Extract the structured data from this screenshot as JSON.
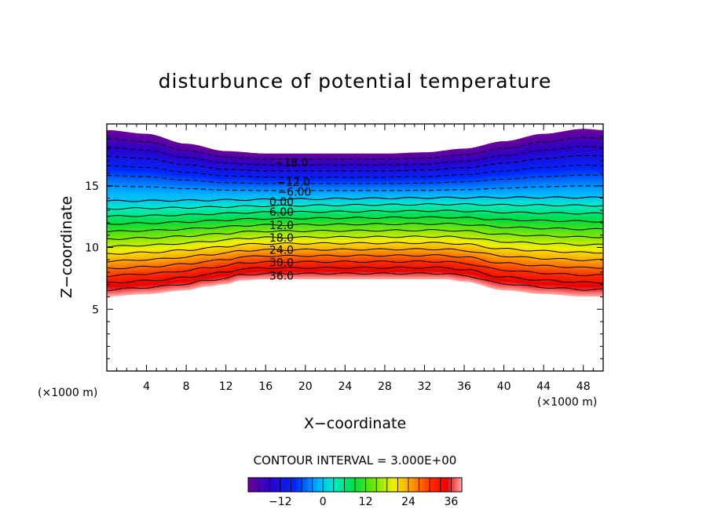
{
  "chart_data": {
    "type": "contour",
    "title": "disturbunce of potential temperature",
    "xlabel": "X−coordinate",
    "ylabel": "Z−coordinate",
    "x_unit": "(×1000 m)",
    "y_unit": "(×1000 m)",
    "xlim": [
      0,
      50
    ],
    "ylim": [
      0,
      20
    ],
    "x_ticks": [
      4,
      8,
      12,
      16,
      20,
      24,
      28,
      32,
      36,
      40,
      44,
      48
    ],
    "y_ticks": [
      5,
      10,
      15
    ],
    "contour_interval_text": "CONTOUR INTERVAL = 3.000E+00",
    "contour_interval": 3,
    "level_range": [
      -21,
      39
    ],
    "surface": {
      "x": [
        0,
        4,
        8,
        10,
        12,
        13.5,
        16,
        20,
        24,
        28,
        32,
        34,
        36,
        40,
        44,
        48,
        50
      ],
      "z": [
        6.0,
        6.2,
        6.5,
        6.8,
        7.0,
        7.3,
        7.4,
        7.4,
        7.4,
        7.4,
        7.4,
        7.4,
        7.2,
        6.5,
        6.2,
        6.0,
        6.0
      ]
    },
    "top": {
      "x": [
        0,
        4,
        8,
        12,
        16,
        20,
        24,
        28,
        32,
        36,
        40,
        44,
        48,
        50
      ],
      "z": [
        19.5,
        19.2,
        18.4,
        17.8,
        17.6,
        17.6,
        17.6,
        17.6,
        17.7,
        18.0,
        18.6,
        19.2,
        19.6,
        19.5
      ]
    },
    "contour_labels": [
      {
        "text": "−18.0",
        "x": 18.6,
        "z": 16.9
      },
      {
        "text": "−12.0",
        "x": 18.8,
        "z": 15.3
      },
      {
        "text": "−6.00",
        "x": 18.9,
        "z": 14.5
      },
      {
        "text": "0.00",
        "x": 17.6,
        "z": 13.7
      },
      {
        "text": "6.00",
        "x": 17.6,
        "z": 12.9
      },
      {
        "text": "12.0",
        "x": 17.6,
        "z": 11.8
      },
      {
        "text": "18.0",
        "x": 17.6,
        "z": 10.8
      },
      {
        "text": "24.0",
        "x": 17.6,
        "z": 9.8
      },
      {
        "text": "30.0",
        "x": 17.6,
        "z": 8.8
      },
      {
        "text": "36.0",
        "x": 17.6,
        "z": 7.7
      }
    ],
    "colorbar": {
      "ticks": [
        -12,
        0,
        12,
        24,
        36
      ],
      "tick_labels": [
        "−12",
        "0",
        "12",
        "24",
        "36"
      ],
      "range": [
        -21,
        39
      ]
    },
    "grid": false,
    "colormap": "rainbow (violet → blue → cyan → green → yellow → orange → red → pink)"
  }
}
